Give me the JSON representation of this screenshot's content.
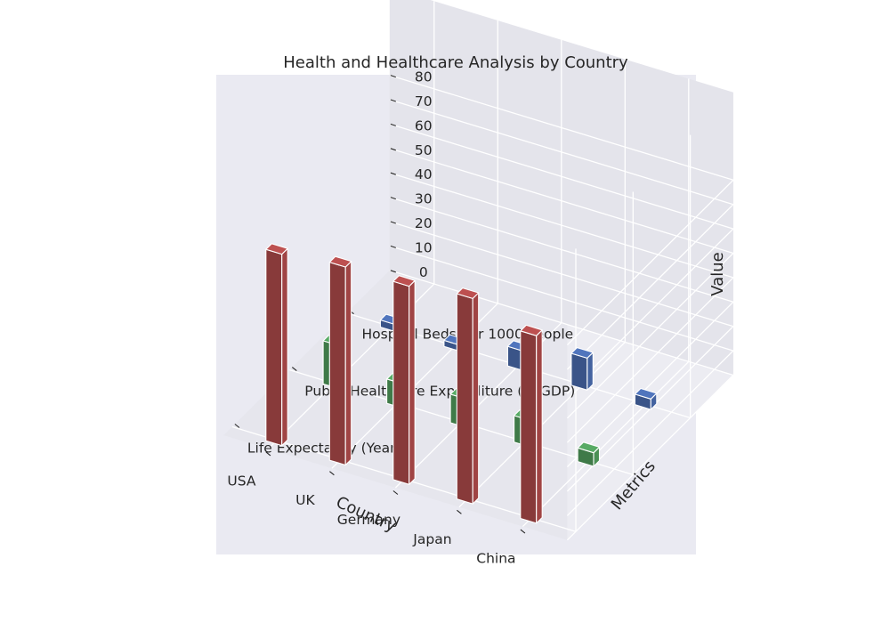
{
  "chart_data": {
    "type": "bar3d",
    "title": "Health and Healthcare Analysis by Country",
    "xlabel": "Country",
    "ylabel": "Metrics",
    "zlabel": "Value",
    "categories": [
      "China",
      "Japan",
      "Germany",
      "UK",
      "USA"
    ],
    "metrics": [
      "Life Expectancy (Years)",
      "Public Healthcare Expenditure (% GDP)",
      "Hospital Beds per 1000 People"
    ],
    "series": [
      {
        "name": "Life Expectancy (Years)",
        "color": "#a04444",
        "values": [
          76.9,
          84.2,
          81.3,
          81.2,
          78.5
        ]
      },
      {
        "name": "Public Healthcare Expenditure (% GDP)",
        "color": "#4a9055",
        "values": [
          5.6,
          10.9,
          11.7,
          10.0,
          17.7
        ]
      },
      {
        "name": "Hospital Beds per 1000 People",
        "color": "#4463a0",
        "values": [
          4.3,
          13.1,
          8.0,
          2.5,
          2.9
        ]
      }
    ],
    "zlim": [
      0,
      84
    ],
    "zticks": [
      0,
      10,
      20,
      30,
      40,
      50,
      60,
      70,
      80
    ],
    "grid": true
  }
}
